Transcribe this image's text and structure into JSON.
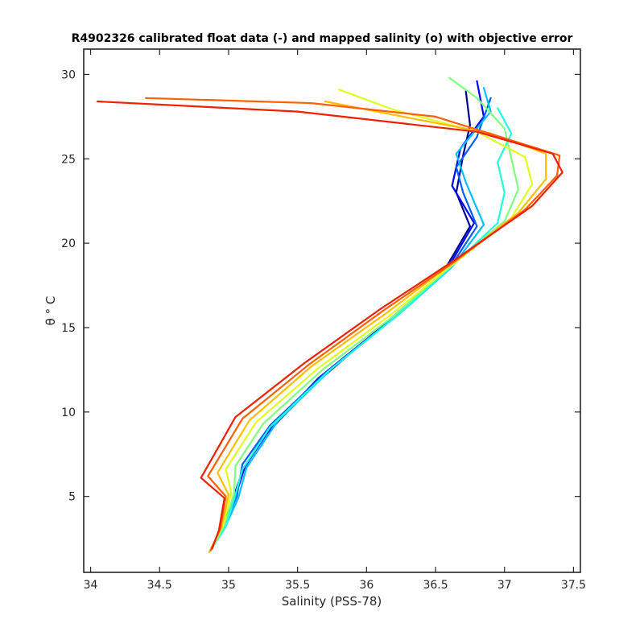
{
  "chart_data": {
    "type": "line",
    "title": "R4902326 calibrated float data (-) and mapped salinity (o) with objective error",
    "xlabel": "Salinity (PSS-78)",
    "ylabel": "θ ° C",
    "xlim": [
      33.95,
      37.55
    ],
    "ylim": [
      0.5,
      31.5
    ],
    "xticks": [
      34,
      34.5,
      35,
      35.5,
      36,
      36.5,
      37,
      37.5
    ],
    "xtick_labels": [
      "34",
      "34.5",
      "35",
      "35.5",
      "36",
      "36.5",
      "37",
      "37.5"
    ],
    "yticks": [
      5,
      10,
      15,
      20,
      25,
      30
    ],
    "ytick_labels": [
      "5",
      "10",
      "15",
      "20",
      "25",
      "30"
    ],
    "grid": false,
    "colormap": "jet",
    "series_colors": [
      "#00008f",
      "#0000ff",
      "#0060ff",
      "#00bfff",
      "#20ffdf",
      "#80ff80",
      "#dfff20",
      "#ffbf00",
      "#ff6000",
      "#ef2000"
    ],
    "series": [
      {
        "points": [
          [
            34.88,
            1.9
          ],
          [
            34.95,
            3
          ],
          [
            35.03,
            4.8
          ],
          [
            35.1,
            6.5
          ],
          [
            35.25,
            8.5
          ],
          [
            35.6,
            11.5
          ],
          [
            36.1,
            15
          ],
          [
            36.55,
            18.2
          ],
          [
            36.75,
            21
          ],
          [
            36.65,
            23
          ],
          [
            36.7,
            25.2
          ],
          [
            36.75,
            27
          ],
          [
            36.72,
            29
          ]
        ]
      },
      {
        "points": [
          [
            34.87,
            1.8
          ],
          [
            34.96,
            3.2
          ],
          [
            35.05,
            5
          ],
          [
            35.12,
            6.8
          ],
          [
            35.3,
            9
          ],
          [
            35.65,
            12
          ],
          [
            36.15,
            15.3
          ],
          [
            36.58,
            18.4
          ],
          [
            36.78,
            21.2
          ],
          [
            36.62,
            23.4
          ],
          [
            36.68,
            25.6
          ],
          [
            36.85,
            27.5
          ],
          [
            36.8,
            29.6
          ]
        ]
      },
      {
        "points": [
          [
            34.88,
            1.9
          ],
          [
            34.97,
            3.3
          ],
          [
            35.06,
            5
          ],
          [
            35.1,
            6.9
          ],
          [
            35.3,
            9.2
          ],
          [
            35.7,
            12.3
          ],
          [
            36.2,
            15.6
          ],
          [
            36.6,
            18.5
          ],
          [
            36.8,
            21
          ],
          [
            36.7,
            23
          ],
          [
            36.65,
            24.5
          ],
          [
            36.8,
            26.3
          ],
          [
            36.9,
            28.6
          ]
        ]
      },
      {
        "points": [
          [
            34.86,
            1.7
          ],
          [
            34.97,
            3.1
          ],
          [
            35.07,
            4.9
          ],
          [
            35.13,
            6.7
          ],
          [
            35.35,
            9.4
          ],
          [
            35.75,
            12.6
          ],
          [
            36.25,
            15.9
          ],
          [
            36.62,
            18.6
          ],
          [
            36.85,
            21.1
          ],
          [
            36.72,
            23.6
          ],
          [
            36.65,
            25.3
          ],
          [
            36.9,
            27.8
          ],
          [
            36.85,
            29.2
          ]
        ]
      },
      {
        "points": [
          [
            34.87,
            1.8
          ],
          [
            34.98,
            3.2
          ],
          [
            35.05,
            5.1
          ],
          [
            35.1,
            6.6
          ],
          [
            35.3,
            9.1
          ],
          [
            35.72,
            12.4
          ],
          [
            36.22,
            15.7
          ],
          [
            36.6,
            18.5
          ],
          [
            36.95,
            21.2
          ],
          [
            37.0,
            23
          ],
          [
            36.95,
            24.8
          ],
          [
            37.05,
            26.5
          ],
          [
            36.95,
            28
          ]
        ]
      },
      {
        "points": [
          [
            34.88,
            1.9
          ],
          [
            34.97,
            3.3
          ],
          [
            35.04,
            5.2
          ],
          [
            35.05,
            6.8
          ],
          [
            35.25,
            9.3
          ],
          [
            35.68,
            12.5
          ],
          [
            36.2,
            15.7
          ],
          [
            36.6,
            18.6
          ],
          [
            37.0,
            21.3
          ],
          [
            37.1,
            23.2
          ],
          [
            37.05,
            25
          ],
          [
            37.0,
            26.8
          ],
          [
            36.8,
            28.6
          ],
          [
            36.6,
            29.8
          ]
        ]
      },
      {
        "points": [
          [
            34.87,
            1.8
          ],
          [
            34.96,
            3.3
          ],
          [
            35.02,
            5.2
          ],
          [
            34.98,
            6.6
          ],
          [
            35.2,
            9.4
          ],
          [
            35.65,
            12.6
          ],
          [
            36.18,
            15.8
          ],
          [
            36.62,
            18.7
          ],
          [
            37.05,
            21.5
          ],
          [
            37.2,
            23.5
          ],
          [
            37.15,
            25.1
          ],
          [
            36.8,
            26.6
          ],
          [
            36.2,
            27.9
          ],
          [
            35.8,
            29.1
          ]
        ]
      },
      {
        "points": [
          [
            34.86,
            1.7
          ],
          [
            34.95,
            3.2
          ],
          [
            35.0,
            5.1
          ],
          [
            34.92,
            6.4
          ],
          [
            35.15,
            9.5
          ],
          [
            35.6,
            12.7
          ],
          [
            36.15,
            15.9
          ],
          [
            36.62,
            18.8
          ],
          [
            37.1,
            21.8
          ],
          [
            37.3,
            23.8
          ],
          [
            37.3,
            25.3
          ],
          [
            36.9,
            26.5
          ],
          [
            36.2,
            27.6
          ],
          [
            35.7,
            28.4
          ]
        ]
      },
      {
        "points": [
          [
            34.87,
            1.8
          ],
          [
            34.94,
            3.1
          ],
          [
            34.98,
            5
          ],
          [
            34.85,
            6.2
          ],
          [
            35.1,
            9.6
          ],
          [
            35.58,
            12.8
          ],
          [
            36.12,
            16
          ],
          [
            36.62,
            18.8
          ],
          [
            37.15,
            22
          ],
          [
            37.38,
            24
          ],
          [
            37.4,
            25.2
          ],
          [
            36.5,
            27.5
          ],
          [
            35.6,
            28.3
          ],
          [
            34.4,
            28.6
          ]
        ]
      },
      {
        "points": [
          [
            34.88,
            1.9
          ],
          [
            34.93,
            3
          ],
          [
            34.97,
            4.9
          ],
          [
            34.8,
            6.1
          ],
          [
            35.05,
            9.7
          ],
          [
            35.55,
            12.9
          ],
          [
            36.1,
            16.1
          ],
          [
            36.62,
            18.9
          ],
          [
            37.2,
            22.2
          ],
          [
            37.42,
            24.2
          ],
          [
            37.35,
            25.3
          ],
          [
            36.8,
            26.6
          ],
          [
            35.5,
            27.8
          ],
          [
            34.05,
            28.4
          ]
        ]
      }
    ]
  }
}
